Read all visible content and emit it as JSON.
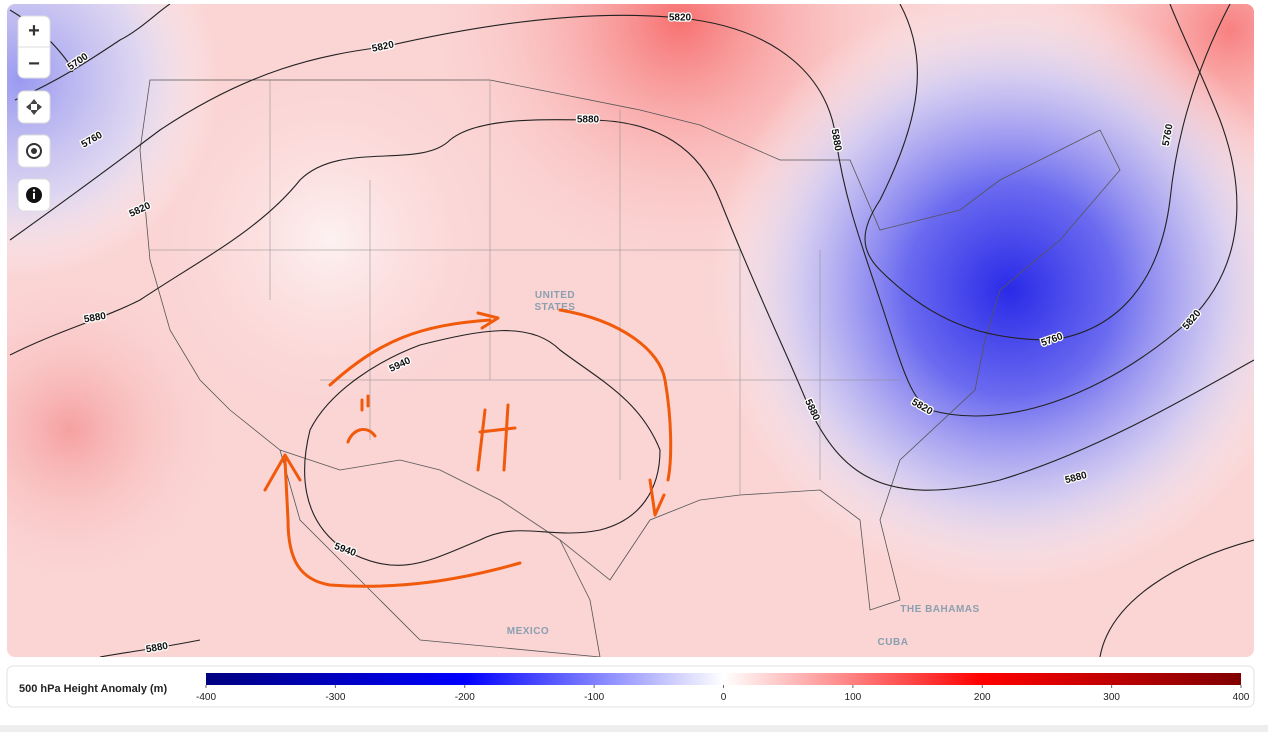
{
  "controls": [
    "+",
    "−"
  ],
  "map": {
    "contour_labels": [
      5700,
      5760,
      5820,
      5820,
      5880,
      5820,
      5880,
      5880,
      5940,
      5940,
      5880,
      5820,
      5760,
      5880,
      5820,
      5760,
      5880
    ],
    "places": [
      "UNITED\nSTATES",
      "MEXICO",
      "THE BAHAMAS",
      "CUBA"
    ]
  },
  "legend": {
    "title": "500 hPa Height Anomaly (m)",
    "range": [
      -400,
      400
    ],
    "ticks": [
      -400,
      -300,
      -200,
      -100,
      0,
      100,
      200,
      300,
      400
    ]
  }
}
